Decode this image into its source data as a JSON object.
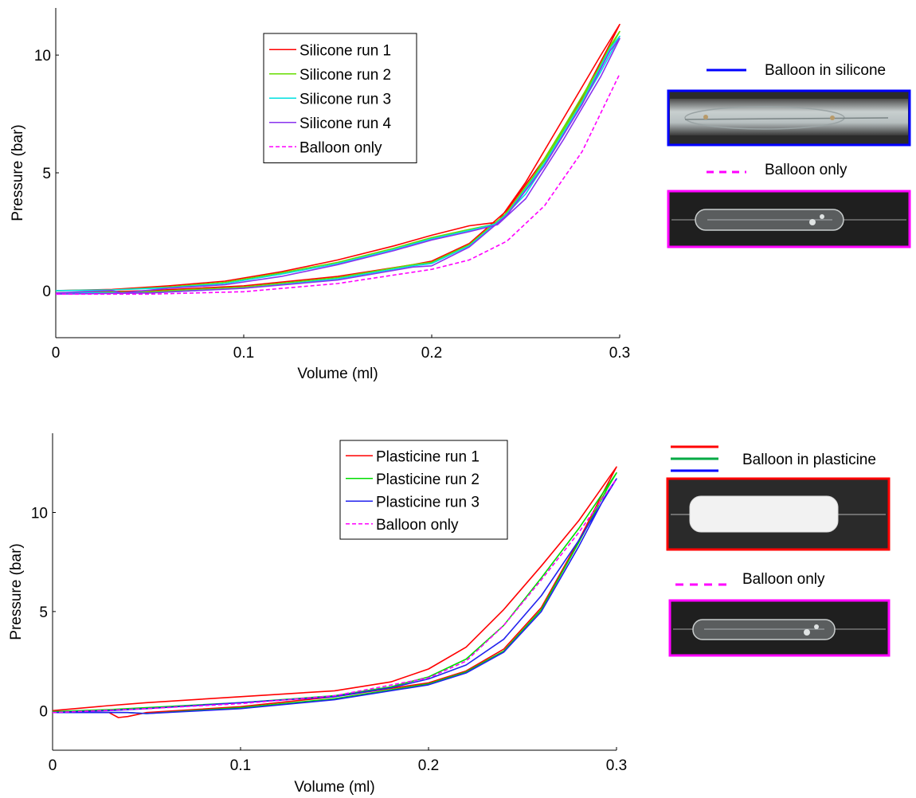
{
  "chart_data": [
    {
      "type": "line",
      "xlabel": "Volume (ml)",
      "ylabel": "Pressure (bar)",
      "xlim": [
        0,
        0.3
      ],
      "ylim": [
        -2,
        12
      ],
      "xticks": [
        0,
        0.1,
        0.2,
        0.3
      ],
      "yticks": [
        0,
        5,
        10
      ],
      "grid": false,
      "legend": "top-center",
      "series": [
        {
          "name": "Silicone run 1",
          "color": "#ff0000",
          "dash": "solid",
          "x": [
            0,
            0.03,
            0.06,
            0.09,
            0.12,
            0.15,
            0.18,
            0.2,
            0.22,
            0.235,
            0.25,
            0.27,
            0.29,
            0.3,
            0.295,
            0.28,
            0.26,
            0.24,
            0.22,
            0.2,
            0.19,
            0.15,
            0.1,
            0.05,
            0
          ],
          "y": [
            0,
            0.05,
            0.2,
            0.4,
            0.8,
            1.3,
            1.9,
            2.35,
            2.75,
            2.9,
            4.6,
            7.3,
            10.0,
            11.3,
            10.5,
            8.2,
            5.6,
            3.4,
            2.0,
            1.25,
            1.1,
            0.6,
            0.2,
            0,
            -0.1
          ]
        },
        {
          "name": "Silicone run 2",
          "color": "#66dd00",
          "dash": "solid",
          "x": [
            0,
            0.03,
            0.06,
            0.09,
            0.12,
            0.15,
            0.18,
            0.2,
            0.22,
            0.235,
            0.25,
            0.27,
            0.29,
            0.3,
            0.295,
            0.28,
            0.26,
            0.24,
            0.22,
            0.2,
            0.19,
            0.15,
            0.1,
            0.05,
            0
          ],
          "y": [
            0,
            0.03,
            0.15,
            0.35,
            0.75,
            1.2,
            1.8,
            2.25,
            2.6,
            2.85,
            4.3,
            6.9,
            9.6,
            11.0,
            10.4,
            8.1,
            5.5,
            3.3,
            1.95,
            1.2,
            1.1,
            0.55,
            0.15,
            -0.05,
            -0.1
          ]
        },
        {
          "name": "Silicone run 3",
          "color": "#00e0e0",
          "dash": "solid",
          "x": [
            0,
            0.03,
            0.06,
            0.09,
            0.12,
            0.15,
            0.18,
            0.2,
            0.22,
            0.235,
            0.25,
            0.27,
            0.29,
            0.3,
            0.295,
            0.28,
            0.26,
            0.24,
            0.22,
            0.2,
            0.19,
            0.15,
            0.1,
            0.05,
            0
          ],
          "y": [
            0,
            0.03,
            0.12,
            0.3,
            0.7,
            1.15,
            1.75,
            2.2,
            2.55,
            2.85,
            4.1,
            6.6,
            9.3,
            10.8,
            10.3,
            8.0,
            5.4,
            3.25,
            1.9,
            1.15,
            1.05,
            0.5,
            0.1,
            -0.1,
            -0.1
          ]
        },
        {
          "name": "Silicone run 4",
          "color": "#8833ee",
          "dash": "solid",
          "x": [
            0,
            0.03,
            0.035,
            0.06,
            0.09,
            0.12,
            0.15,
            0.18,
            0.2,
            0.22,
            0.235,
            0.25,
            0.27,
            0.29,
            0.3,
            0.295,
            0.28,
            0.26,
            0.24,
            0.22,
            0.2,
            0.19,
            0.15,
            0.1,
            0.05,
            0
          ],
          "y": [
            -0.1,
            0.0,
            -0.1,
            0.1,
            0.25,
            0.6,
            1.1,
            1.7,
            2.15,
            2.5,
            2.8,
            3.9,
            6.4,
            9.1,
            10.7,
            10.2,
            7.9,
            5.3,
            3.2,
            1.85,
            1.05,
            1.0,
            0.45,
            0.1,
            -0.1,
            -0.15
          ]
        },
        {
          "name": "Balloon only",
          "color": "#ff00ff",
          "dash": "dashed",
          "x": [
            0,
            0.05,
            0.1,
            0.15,
            0.2,
            0.22,
            0.24,
            0.26,
            0.28,
            0.3
          ],
          "y": [
            -0.15,
            -0.15,
            -0.05,
            0.3,
            0.9,
            1.3,
            2.1,
            3.6,
            5.9,
            9.2
          ]
        }
      ]
    },
    {
      "type": "line",
      "xlabel": "Volume (ml)",
      "ylabel": "Pressure (bar)",
      "xlim": [
        0,
        0.3
      ],
      "ylim": [
        -2,
        14
      ],
      "xticks": [
        0,
        0.1,
        0.2,
        0.3
      ],
      "yticks": [
        0,
        5,
        10
      ],
      "grid": false,
      "legend": "top-center",
      "series": [
        {
          "name": "Plasticine run 1",
          "color": "#ff0000",
          "dash": "solid",
          "x": [
            0,
            0.03,
            0.05,
            0.1,
            0.15,
            0.18,
            0.2,
            0.22,
            0.24,
            0.26,
            0.28,
            0.3,
            0.295,
            0.28,
            0.26,
            0.24,
            0.22,
            0.2,
            0.15,
            0.1,
            0.05,
            0.04,
            0.035,
            0.03,
            0
          ],
          "y": [
            0,
            0.25,
            0.4,
            0.7,
            1.0,
            1.45,
            2.1,
            3.2,
            5.1,
            7.3,
            9.6,
            12.3,
            11.4,
            8.6,
            5.2,
            3.1,
            2.0,
            1.4,
            0.7,
            0.2,
            -0.1,
            -0.3,
            -0.35,
            -0.1,
            -0.1
          ]
        },
        {
          "name": "Plasticine run 2",
          "color": "#00dd00",
          "dash": "solid",
          "x": [
            0,
            0.03,
            0.05,
            0.1,
            0.15,
            0.18,
            0.2,
            0.22,
            0.24,
            0.26,
            0.28,
            0.3,
            0.295,
            0.28,
            0.26,
            0.24,
            0.22,
            0.2,
            0.15,
            0.1,
            0.05,
            0.04,
            0
          ],
          "y": [
            -0.05,
            0.05,
            0.15,
            0.4,
            0.75,
            1.2,
            1.7,
            2.6,
            4.3,
            6.7,
            9.2,
            12.0,
            11.2,
            8.5,
            5.1,
            3.0,
            1.95,
            1.35,
            0.6,
            0.15,
            -0.15,
            -0.1,
            -0.1
          ]
        },
        {
          "name": "Plasticine run 3",
          "color": "#2222ee",
          "dash": "solid",
          "x": [
            0,
            0.03,
            0.05,
            0.1,
            0.15,
            0.18,
            0.2,
            0.22,
            0.24,
            0.26,
            0.28,
            0.3,
            0.295,
            0.28,
            0.26,
            0.24,
            0.22,
            0.2,
            0.15,
            0.1,
            0.05,
            0.04,
            0
          ],
          "y": [
            -0.1,
            0.0,
            0.1,
            0.4,
            0.7,
            1.15,
            1.6,
            2.3,
            3.6,
            5.8,
            8.6,
            11.7,
            11.0,
            8.3,
            5.0,
            2.95,
            1.9,
            1.3,
            0.55,
            0.1,
            -0.15,
            -0.1,
            -0.1
          ]
        },
        {
          "name": "Balloon only",
          "color": "#ff00ff",
          "dash": "dashed",
          "x": [
            0,
            0.05,
            0.1,
            0.15,
            0.2,
            0.22,
            0.24,
            0.26,
            0.28,
            0.3
          ],
          "y": [
            -0.1,
            0.1,
            0.35,
            0.75,
            1.65,
            2.5,
            4.3,
            6.6,
            9.0,
            11.7
          ]
        }
      ]
    }
  ],
  "side": {
    "top_solid_label": "Balloon in silicone",
    "top_dashed_label": "Balloon only",
    "bottom_solid_label": "Balloon in plasticine",
    "bottom_dashed_label": "Balloon only",
    "colors": {
      "silicone_line": "#0000ff",
      "silicone_frame": "#0000ff",
      "balloon_dash": "#ff00ff",
      "balloon_frame": "#ff00ff",
      "plasticine_frame": "#ff0000",
      "plasticine_lines": [
        "#ff0000",
        "#00aa44",
        "#0000ff"
      ]
    }
  }
}
